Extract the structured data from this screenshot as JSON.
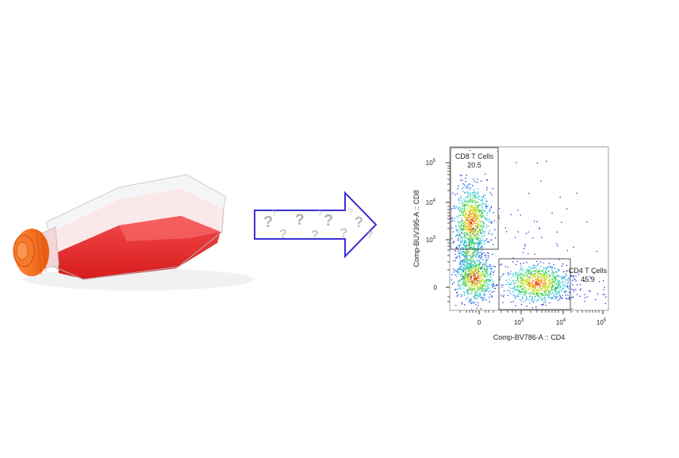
{
  "flask": {
    "icon": "cell-culture-flask-icon",
    "media_color": "#e82a2a",
    "cap_color": "#f26a1b"
  },
  "arrow": {
    "icon": "question-mark-arrow-icon",
    "glyph": "?",
    "stroke_color": "#3a2fd6"
  },
  "plot": {
    "xaxis_label": "Comp-BV786-A :: CD4",
    "yaxis_label": "Comp-BUV395-A :: CD8",
    "x_tick_labels": [
      {
        "base": "0",
        "exp": ""
      },
      {
        "base": "10",
        "exp": "3"
      },
      {
        "base": "10",
        "exp": "4"
      },
      {
        "base": "10",
        "exp": "5"
      }
    ],
    "y_tick_labels": [
      {
        "base": "0",
        "exp": ""
      },
      {
        "base": "10",
        "exp": "3"
      },
      {
        "base": "10",
        "exp": "4"
      },
      {
        "base": "10",
        "exp": "5"
      }
    ],
    "gates": [
      {
        "name": "CD8 T Cells",
        "value": "20.5"
      },
      {
        "name": "CD4 T Cells",
        "value": "45.9"
      }
    ]
  }
}
